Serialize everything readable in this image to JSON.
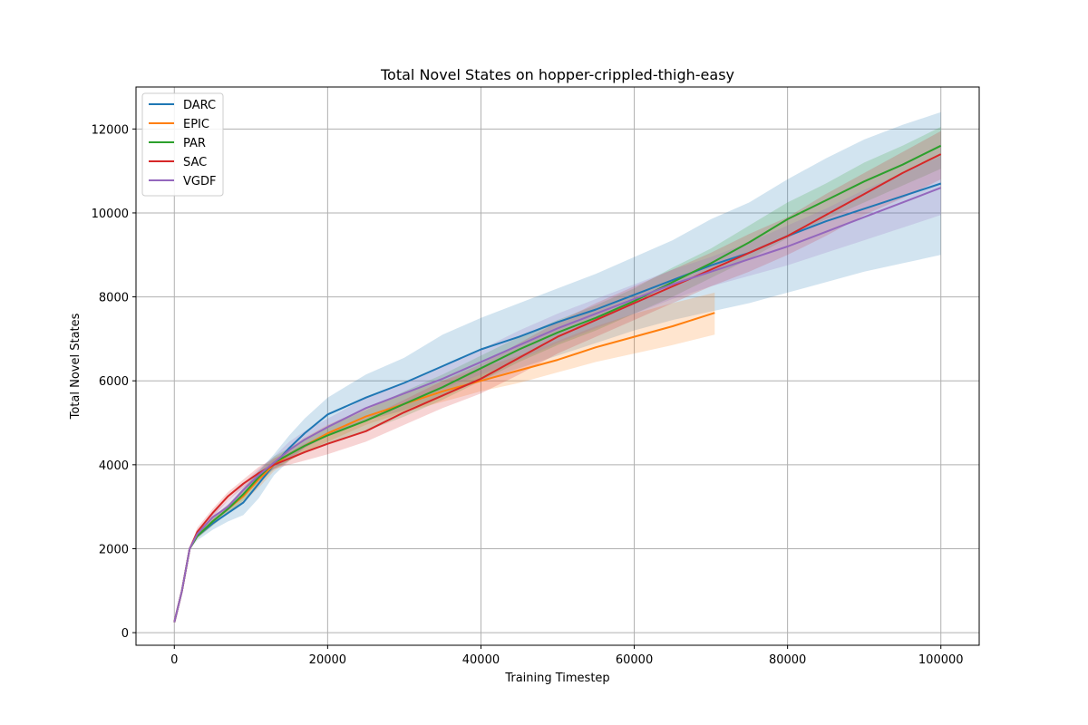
{
  "chart_data": {
    "type": "line",
    "title": "Total Novel States on hopper-crippled-thigh-easy",
    "xlabel": "Training Timestep",
    "ylabel": "Total Novel States",
    "xlim": [
      -5000,
      105000
    ],
    "ylim": [
      -300,
      13000
    ],
    "xticks": [
      0,
      20000,
      40000,
      60000,
      80000,
      100000
    ],
    "yticks": [
      0,
      2000,
      4000,
      6000,
      8000,
      10000,
      12000
    ],
    "grid": true,
    "legend_position": "upper left",
    "series": [
      {
        "name": "DARC",
        "color": "#1f77b4",
        "x": [
          0,
          1000,
          2000,
          3000,
          5000,
          7000,
          9000,
          11000,
          13000,
          15000,
          17000,
          20000,
          25000,
          30000,
          35000,
          40000,
          45000,
          50000,
          55000,
          60000,
          65000,
          70000,
          75000,
          80000,
          85000,
          90000,
          95000,
          100000
        ],
        "y": [
          250,
          1000,
          2000,
          2300,
          2600,
          2850,
          3100,
          3550,
          4000,
          4400,
          4750,
          5200,
          5600,
          5950,
          6350,
          6750,
          7050,
          7400,
          7700,
          8050,
          8400,
          8750,
          9050,
          9450,
          9800,
          10100,
          10400,
          10700
        ],
        "lower": [
          250,
          1000,
          2000,
          2200,
          2450,
          2650,
          2800,
          3200,
          3750,
          4100,
          4400,
          4700,
          5050,
          5300,
          5650,
          6000,
          6300,
          6600,
          6900,
          7200,
          7450,
          7650,
          7850,
          8100,
          8350,
          8600,
          8800,
          9000
        ],
        "upper": [
          250,
          1000,
          2000,
          2400,
          2750,
          3050,
          3400,
          3850,
          4250,
          4700,
          5100,
          5600,
          6150,
          6550,
          7100,
          7500,
          7850,
          8200,
          8550,
          8950,
          9350,
          9850,
          10250,
          10800,
          11300,
          11750,
          12100,
          12400
        ]
      },
      {
        "name": "EPIC",
        "color": "#ff7f0e",
        "x": [
          0,
          1000,
          2000,
          3000,
          5000,
          7000,
          9000,
          11000,
          13000,
          15000,
          17000,
          20000,
          25000,
          30000,
          35000,
          40000,
          45000,
          50000,
          55000,
          60000,
          65000,
          70500
        ],
        "y": [
          250,
          1000,
          2000,
          2300,
          2650,
          2950,
          3250,
          3650,
          4000,
          4250,
          4450,
          4750,
          5150,
          5450,
          5750,
          6000,
          6250,
          6500,
          6800,
          7050,
          7300,
          7620
        ],
        "lower": [
          250,
          1000,
          2000,
          2250,
          2550,
          2850,
          3100,
          3450,
          3850,
          4100,
          4300,
          4550,
          4950,
          5250,
          5500,
          5750,
          5950,
          6200,
          6450,
          6650,
          6850,
          7100
        ],
        "upper": [
          250,
          1000,
          2000,
          2350,
          2750,
          3050,
          3400,
          3800,
          4150,
          4400,
          4650,
          4950,
          5350,
          5700,
          6000,
          6300,
          6600,
          6950,
          7300,
          7600,
          7850,
          8100
        ]
      },
      {
        "name": "PAR",
        "color": "#2ca02c",
        "x": [
          0,
          1000,
          2000,
          3000,
          5000,
          7000,
          9000,
          11000,
          13000,
          15000,
          17000,
          20000,
          25000,
          30000,
          35000,
          40000,
          45000,
          50000,
          55000,
          60000,
          65000,
          70000,
          75000,
          80000,
          85000,
          90000,
          95000,
          100000
        ],
        "y": [
          250,
          1000,
          2000,
          2300,
          2650,
          2950,
          3300,
          3700,
          4050,
          4250,
          4450,
          4700,
          5050,
          5450,
          5850,
          6300,
          6750,
          7150,
          7500,
          7900,
          8350,
          8800,
          9300,
          9850,
          10300,
          10750,
          11150,
          11600
        ],
        "lower": [
          250,
          1000,
          2000,
          2250,
          2550,
          2850,
          3150,
          3550,
          3900,
          4100,
          4300,
          4500,
          4800,
          5150,
          5550,
          6000,
          6450,
          6850,
          7200,
          7600,
          8000,
          8450,
          8900,
          9400,
          9850,
          10250,
          10650,
          11050
        ],
        "upper": [
          250,
          1000,
          2000,
          2350,
          2750,
          3050,
          3450,
          3850,
          4200,
          4400,
          4600,
          4900,
          5300,
          5750,
          6150,
          6600,
          7050,
          7450,
          7800,
          8200,
          8700,
          9150,
          9700,
          10250,
          10700,
          11200,
          11600,
          12050
        ]
      },
      {
        "name": "SAC",
        "color": "#d62728",
        "x": [
          0,
          1000,
          2000,
          3000,
          5000,
          7000,
          9000,
          11000,
          13000,
          15000,
          17000,
          20000,
          25000,
          30000,
          35000,
          40000,
          45000,
          50000,
          55000,
          60000,
          65000,
          70000,
          75000,
          80000,
          85000,
          90000,
          95000,
          100000
        ],
        "y": [
          250,
          1000,
          2000,
          2400,
          2850,
          3250,
          3550,
          3800,
          4000,
          4150,
          4300,
          4500,
          4800,
          5250,
          5650,
          6050,
          6550,
          7050,
          7450,
          7850,
          8250,
          8650,
          9050,
          9450,
          9950,
          10450,
          10950,
          11400
        ],
        "lower": [
          250,
          1000,
          2000,
          2300,
          2750,
          3150,
          3450,
          3700,
          3900,
          4000,
          4100,
          4250,
          4550,
          4950,
          5350,
          5700,
          6150,
          6650,
          7050,
          7450,
          7850,
          8250,
          8600,
          9000,
          9450,
          9950,
          10350,
          10800
        ],
        "upper": [
          250,
          1000,
          2000,
          2500,
          2950,
          3350,
          3650,
          3950,
          4150,
          4300,
          4500,
          4750,
          5100,
          5550,
          6000,
          6400,
          6900,
          7400,
          7850,
          8250,
          8650,
          9050,
          9500,
          9900,
          10450,
          10950,
          11450,
          11950
        ]
      },
      {
        "name": "VGDF",
        "color": "#9467bd",
        "x": [
          0,
          1000,
          2000,
          3000,
          5000,
          7000,
          9000,
          11000,
          13000,
          15000,
          17000,
          20000,
          25000,
          30000,
          35000,
          40000,
          45000,
          50000,
          55000,
          60000,
          65000,
          70000,
          75000,
          80000,
          85000,
          90000,
          95000,
          100000
        ],
        "y": [
          250,
          1000,
          2000,
          2350,
          2750,
          3000,
          3400,
          3750,
          4050,
          4350,
          4600,
          4900,
          5350,
          5700,
          6050,
          6450,
          6850,
          7250,
          7600,
          7950,
          8300,
          8600,
          8900,
          9200,
          9550,
          9900,
          10250,
          10600
        ],
        "lower": [
          250,
          1000,
          2000,
          2300,
          2650,
          2900,
          3250,
          3600,
          3900,
          4150,
          4400,
          4700,
          5100,
          5450,
          5800,
          6150,
          6500,
          6900,
          7250,
          7600,
          7950,
          8250,
          8500,
          8750,
          9050,
          9350,
          9650,
          9950
        ],
        "upper": [
          250,
          1000,
          2000,
          2400,
          2850,
          3150,
          3550,
          3900,
          4200,
          4550,
          4800,
          5100,
          5600,
          5950,
          6350,
          6750,
          7200,
          7600,
          7950,
          8300,
          8650,
          8950,
          9300,
          9700,
          10100,
          10550,
          10950,
          11350
        ]
      }
    ]
  }
}
